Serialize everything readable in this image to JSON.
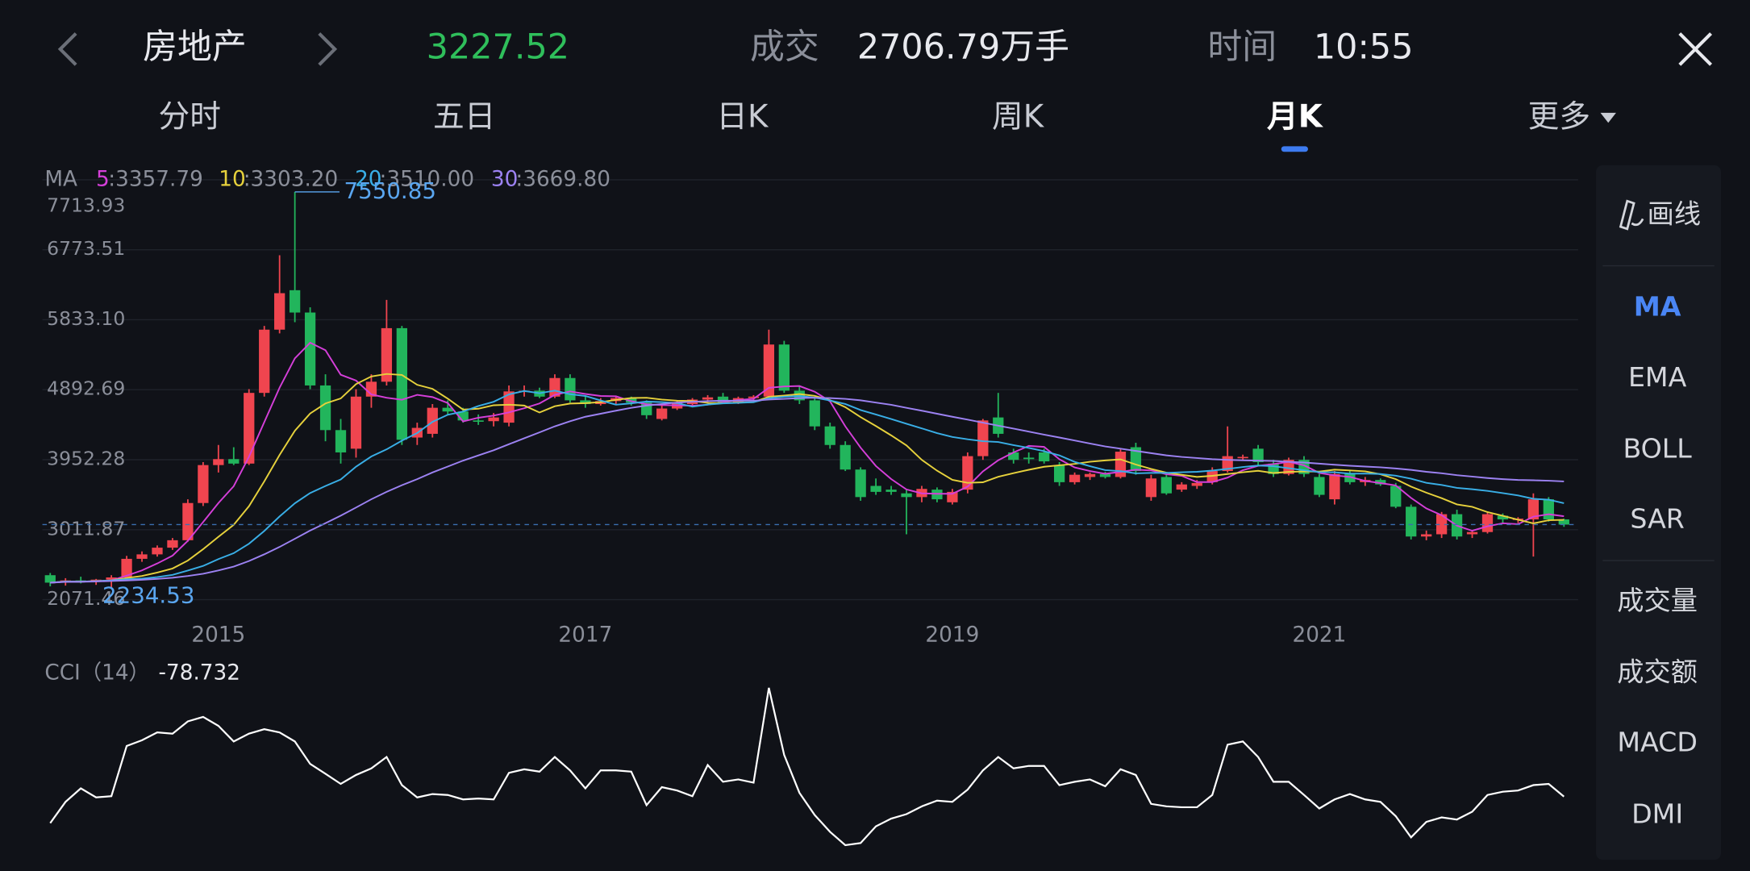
{
  "header": {
    "title": "房地产",
    "price": "3227.52",
    "volume_label": "成交",
    "volume": "2706.79万手",
    "time_label": "时间",
    "time": "10:55"
  },
  "tabs": [
    "分时",
    "五日",
    "日K",
    "周K",
    "月K",
    "更多"
  ],
  "active_tab": 4,
  "sidebar": [
    "画线",
    "MA",
    "EMA",
    "BOLL",
    "SAR",
    "成交量",
    "成交额",
    "MACD",
    "DMI"
  ],
  "active_indicator": 1,
  "chart_data": [
    {
      "type": "candlestick",
      "legend_title": "MA",
      "categories": [
        null,
        null,
        null,
        null,
        null,
        null,
        null,
        null,
        null,
        null,
        null,
        "2015",
        null,
        null,
        null,
        null,
        null,
        null,
        null,
        null,
        null,
        null,
        null,
        null,
        null,
        null,
        null,
        null,
        null,
        null,
        null,
        null,
        null,
        null,
        null,
        "2017",
        null,
        null,
        null,
        null,
        null,
        null,
        null,
        null,
        null,
        null,
        null,
        null,
        null,
        null,
        null,
        null,
        null,
        null,
        null,
        null,
        null,
        null,
        null,
        "2019",
        null,
        null,
        null,
        null,
        null,
        null,
        null,
        null,
        null,
        null,
        null,
        null,
        null,
        null,
        null,
        null,
        null,
        null,
        null,
        null,
        null,
        null,
        null,
        "2021",
        null,
        null,
        null,
        null,
        null,
        null,
        null,
        null,
        null,
        null,
        null,
        null,
        null,
        null,
        null,
        null
      ],
      "candles": [
        [
          2400,
          2430,
          2250,
          2300
        ],
        [
          2300,
          2360,
          2260,
          2330
        ],
        [
          2330,
          2380,
          2290,
          2310
        ],
        [
          2310,
          2350,
          2270,
          2340
        ],
        [
          2340,
          2400,
          2234.53,
          2370
        ],
        [
          2370,
          2660,
          2340,
          2620
        ],
        [
          2620,
          2720,
          2580,
          2680
        ],
        [
          2680,
          2800,
          2650,
          2770
        ],
        [
          2770,
          2900,
          2740,
          2870
        ],
        [
          2870,
          3420,
          2850,
          3370
        ],
        [
          3370,
          3920,
          3330,
          3880
        ],
        [
          3880,
          4150,
          3780,
          3960
        ],
        [
          3960,
          4120,
          3880,
          3900
        ],
        [
          3900,
          4900,
          3880,
          4850
        ],
        [
          4850,
          5750,
          4800,
          5700
        ],
        [
          5700,
          6700,
          5650,
          6190
        ],
        [
          6230,
          7550.85,
          5800,
          5930
        ],
        [
          5930,
          6000,
          4900,
          4950
        ],
        [
          4950,
          5100,
          4200,
          4350
        ],
        [
          4350,
          4500,
          3900,
          4050
        ],
        [
          4100,
          4900,
          3980,
          4800
        ],
        [
          4800,
          5100,
          4650,
          5000
        ],
        [
          5000,
          6100,
          4950,
          5720
        ],
        [
          5720,
          5750,
          4150,
          4220
        ],
        [
          4250,
          4450,
          4150,
          4380
        ],
        [
          4300,
          4700,
          4250,
          4650
        ],
        [
          4650,
          4750,
          4550,
          4600
        ],
        [
          4600,
          4650,
          4450,
          4480
        ],
        [
          4480,
          4560,
          4420,
          4470
        ],
        [
          4470,
          4580,
          4400,
          4520
        ],
        [
          4450,
          4950,
          4400,
          4870
        ],
        [
          4870,
          4950,
          4800,
          4880
        ],
        [
          4880,
          4920,
          4780,
          4800
        ],
        [
          4800,
          5100,
          4780,
          5050
        ],
        [
          5050,
          5100,
          4720,
          4750
        ],
        [
          4750,
          4800,
          4650,
          4700
        ],
        [
          4700,
          4780,
          4680,
          4740
        ],
        [
          4740,
          4800,
          4700,
          4780
        ],
        [
          4780,
          4800,
          4680,
          4720
        ],
        [
          4720,
          4750,
          4500,
          4550
        ],
        [
          4500,
          4680,
          4480,
          4640
        ],
        [
          4640,
          4750,
          4620,
          4720
        ],
        [
          4700,
          4780,
          4680,
          4760
        ],
        [
          4760,
          4820,
          4720,
          4790
        ],
        [
          4800,
          4850,
          4700,
          4720
        ],
        [
          4720,
          4800,
          4700,
          4780
        ],
        [
          4780,
          4820,
          4750,
          4800
        ],
        [
          4800,
          5700,
          4780,
          5500
        ],
        [
          5500,
          5550,
          4850,
          4880
        ],
        [
          4880,
          4950,
          4700,
          4750
        ],
        [
          4750,
          4800,
          4350,
          4400
        ],
        [
          4400,
          4450,
          4100,
          4150
        ],
        [
          4150,
          4200,
          3800,
          3820
        ],
        [
          3820,
          3850,
          3400,
          3450
        ],
        [
          3600,
          3700,
          3480,
          3520
        ],
        [
          3550,
          3600,
          3480,
          3520
        ],
        [
          3500,
          3550,
          2950,
          3450
        ],
        [
          3450,
          3600,
          3380,
          3560
        ],
        [
          3550,
          3580,
          3380,
          3420
        ],
        [
          3380,
          3560,
          3350,
          3520
        ],
        [
          3550,
          4050,
          3500,
          4000
        ],
        [
          4000,
          4500,
          3950,
          4480
        ],
        [
          4520,
          4850,
          4250,
          4300
        ],
        [
          4050,
          4100,
          3900,
          3950
        ],
        [
          3980,
          4050,
          3900,
          3960
        ],
        [
          4050,
          4100,
          3900,
          3930
        ],
        [
          3880,
          3920,
          3600,
          3650
        ],
        [
          3650,
          3780,
          3620,
          3750
        ],
        [
          3720,
          3780,
          3680,
          3760
        ],
        [
          3760,
          3790,
          3700,
          3720
        ],
        [
          3720,
          4100,
          3700,
          4060
        ],
        [
          4120,
          4180,
          3750,
          3800
        ],
        [
          3450,
          3750,
          3400,
          3700
        ],
        [
          3720,
          3760,
          3480,
          3500
        ],
        [
          3550,
          3650,
          3520,
          3620
        ],
        [
          3600,
          3680,
          3560,
          3640
        ],
        [
          3650,
          3850,
          3620,
          3800
        ],
        [
          3800,
          4400,
          3780,
          4000
        ],
        [
          3980,
          4020,
          3950,
          3990
        ],
        [
          4100,
          4150,
          3880,
          3920
        ],
        [
          3900,
          3950,
          3720,
          3760
        ],
        [
          3760,
          3980,
          3740,
          3950
        ],
        [
          3950,
          4000,
          3720,
          3760
        ],
        [
          3720,
          3760,
          3450,
          3480
        ],
        [
          3420,
          3800,
          3350,
          3760
        ],
        [
          3760,
          3800,
          3620,
          3650
        ],
        [
          3650,
          3720,
          3600,
          3680
        ],
        [
          3680,
          3700,
          3600,
          3620
        ],
        [
          3600,
          3640,
          3300,
          3320
        ],
        [
          3320,
          3350,
          2880,
          2920
        ],
        [
          2920,
          3000,
          2870,
          2950
        ],
        [
          2950,
          3250,
          2900,
          3220
        ],
        [
          3220,
          3280,
          2880,
          2920
        ],
        [
          2950,
          3000,
          2900,
          2980
        ],
        [
          2980,
          3250,
          2960,
          3220
        ],
        [
          3200,
          3230,
          3100,
          3150
        ],
        [
          3150,
          3180,
          3100,
          3160
        ],
        [
          3150,
          3500,
          2650,
          3420
        ],
        [
          3420,
          3450,
          3120,
          3150
        ],
        [
          3150,
          3160,
          3050,
          3080
        ]
      ],
      "up_color": "#f0454f",
      "down_color": "#22b55c",
      "series": [
        {
          "name": "5",
          "label": ":3357.79",
          "color": "#d53fd9",
          "values": [
            2300,
            2315,
            2313,
            2320,
            2330,
            2394,
            2464,
            2558,
            2662,
            2862,
            3114,
            3370,
            3596,
            3992,
            4458,
            4920,
            5314,
            5524,
            5424,
            5094,
            5016,
            4830,
            4784,
            4758,
            4824,
            4794,
            4714,
            4466,
            4516,
            4544,
            4588,
            4644,
            4708,
            4824,
            4870,
            4836,
            4808,
            4804,
            4738,
            4698,
            4686,
            4682,
            4678,
            4692,
            4726,
            4754,
            4770,
            4918,
            4936,
            4942,
            4866,
            4736,
            4400,
            4114,
            3868,
            3692,
            3552,
            3500,
            3494,
            3494,
            3590,
            3796,
            3944,
            4050,
            4138,
            4124,
            3958,
            3848,
            3800,
            3762,
            3788,
            3818,
            3808,
            3756,
            3736,
            3652,
            3652,
            3712,
            3810,
            3870,
            3894,
            3924,
            3876,
            3774,
            3742,
            3720,
            3666,
            3638,
            3606,
            3438,
            3298,
            3206,
            3066,
            2998,
            3058,
            3098,
            3086,
            3186,
            3220,
            3192
          ]
        },
        {
          "name": "10",
          "label": ":3303.20",
          "color": "#e6d13c",
          "values": [
            2300,
            2315,
            2313,
            2320,
            2330,
            2362,
            2390,
            2436,
            2490,
            2596,
            2750,
            2917,
            3077,
            3327,
            3660,
            4017,
            4342,
            4573,
            4708,
            4776,
            4968,
            5072,
            5104,
            5091,
            4959,
            4905,
            4772,
            4625,
            4637,
            4684,
            4691,
            4679,
            4587,
            4670,
            4707,
            4712,
            4726,
            4756,
            4781,
            4784,
            4761,
            4745,
            4741,
            4715,
            4712,
            4720,
            4726,
            4798,
            4814,
            4834,
            4810,
            4753,
            4659,
            4525,
            4405,
            4279,
            4144,
            3950,
            3804,
            3681,
            3641,
            3648,
            3722,
            3772,
            3816,
            3857,
            3877,
            3896,
            3925,
            3943,
            3956,
            3888,
            3828,
            3778,
            3749,
            3720,
            3735,
            3760,
            3783,
            3803,
            3773,
            3788,
            3794,
            3792,
            3818,
            3807,
            3795,
            3757,
            3690,
            3590,
            3509,
            3436,
            3352,
            3318,
            3248,
            3198,
            3146,
            3096,
            3139,
            3145
          ]
        },
        {
          "name": "20",
          "label": ":3510.00",
          "color": "#39aee6",
          "values": [
            2300,
            2315,
            2313,
            2320,
            2330,
            2346,
            2353,
            2375,
            2405,
            2463,
            2525,
            2616,
            2695,
            2824,
            2995,
            3190,
            3366,
            3505,
            3599,
            3686,
            3859,
            3995,
            4091,
            4209,
            4310,
            4461,
            4557,
            4599,
            4673,
            4730,
            4830,
            4876,
            4846,
            4881,
            4833,
            4809,
            4749,
            4691,
            4709,
            4734,
            4726,
            4712,
            4664,
            4693,
            4710,
            4716,
            4726,
            4777,
            4798,
            4809,
            4786,
            4749,
            4700,
            4620,
            4559,
            4500,
            4435,
            4374,
            4309,
            4258,
            4226,
            4201,
            4191,
            4149,
            4111,
            4068,
            4011,
            3923,
            3865,
            3812,
            3799,
            3768,
            3775,
            3775,
            3783,
            3789,
            3806,
            3828,
            3854,
            3873,
            3865,
            3838,
            3811,
            3785,
            3784,
            3764,
            3765,
            3759,
            3737,
            3697,
            3641,
            3612,
            3573,
            3555,
            3533,
            3503,
            3471,
            3427,
            3415,
            3368
          ]
        },
        {
          "name": "30",
          "label": ":3669.80",
          "color": "#9c82f2",
          "values": [
            2300,
            2310,
            2312,
            2316,
            2322,
            2330,
            2338,
            2350,
            2365,
            2390,
            2420,
            2465,
            2515,
            2590,
            2680,
            2780,
            2890,
            3000,
            3100,
            3200,
            3310,
            3420,
            3520,
            3610,
            3690,
            3780,
            3860,
            3940,
            4010,
            4080,
            4160,
            4240,
            4320,
            4400,
            4470,
            4530,
            4570,
            4610,
            4650,
            4680,
            4700,
            4720,
            4730,
            4740,
            4745,
            4745,
            4745,
            4760,
            4770,
            4780,
            4785,
            4780,
            4770,
            4750,
            4720,
            4690,
            4650,
            4610,
            4570,
            4530,
            4490,
            4450,
            4410,
            4370,
            4330,
            4290,
            4250,
            4210,
            4170,
            4130,
            4100,
            4070,
            4040,
            4010,
            3990,
            3975,
            3960,
            3950,
            3945,
            3940,
            3935,
            3925,
            3915,
            3900,
            3885,
            3870,
            3860,
            3850,
            3835,
            3815,
            3790,
            3770,
            3745,
            3725,
            3705,
            3690,
            3680,
            3675,
            3670,
            3660
          ]
        }
      ],
      "ylim": [
        2071.46,
        7713.93
      ],
      "yticks": [
        2071.46,
        3011.87,
        3952.28,
        4892.69,
        {
          "value": 5833.1,
          "label": "5833.10"
        },
        6773.51,
        7713.93
      ],
      "grid": true
    },
    {
      "type": "line",
      "title": "CCI（14）",
      "color": "#ffffff",
      "values": [
        -167,
        -96,
        -51,
        -81,
        -77,
        91,
        110,
        136,
        132,
        173,
        188,
        158,
        106,
        132,
        147,
        136,
        106,
        31,
        -2,
        -36,
        -6,
        16,
        54,
        -40,
        -81,
        -70,
        -73,
        -88,
        -85,
        -88,
        1,
        13,
        5,
        54,
        9,
        -51,
        9,
        9,
        5,
        -107,
        -47,
        -58,
        -77,
        27,
        -29,
        -21,
        -32,
        285,
        61,
        -66,
        -140,
        -196,
        -241,
        -234,
        -178,
        -152,
        -137,
        -111,
        -92,
        -96,
        -55,
        9,
        54,
        16,
        24,
        24,
        -40,
        -29,
        -21,
        -44,
        13,
        -6,
        -103,
        -111,
        -114,
        -114,
        -73,
        95,
        106,
        54,
        -29,
        -29,
        -73,
        -118,
        -88,
        -70,
        -88,
        -96,
        -144,
        -215,
        -163,
        -148,
        -155,
        -129,
        -73,
        -62,
        -58,
        -40,
        -36,
        -78.732
      ],
      "ylim": [
        -260,
        300
      ]
    }
  ]
}
